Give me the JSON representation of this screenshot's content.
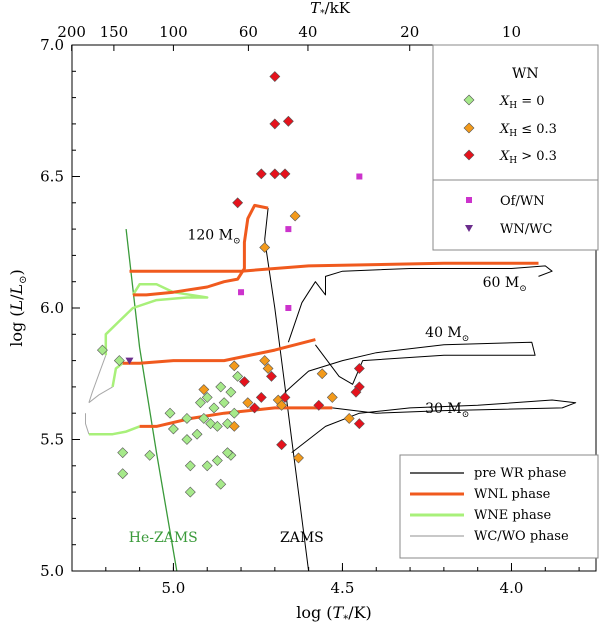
{
  "chart_data": {
    "type": "scatter",
    "title": "",
    "xlabel": "log (T*/K)",
    "ylabel": "log (L/L⊙)",
    "top_axis_label": "T*/kK",
    "xlim": [
      5.3,
      3.75
    ],
    "ylim": [
      5.0,
      7.0
    ],
    "x_ticks": [
      {
        "value": 5.0,
        "label": "5.0"
      },
      {
        "value": 4.5,
        "label": "4.5"
      },
      {
        "value": 4.0,
        "label": "4.0"
      }
    ],
    "y_ticks": [
      {
        "value": 5.0,
        "label": "5.0"
      },
      {
        "value": 5.5,
        "label": "5.5"
      },
      {
        "value": 6.0,
        "label": "6.0"
      },
      {
        "value": 6.5,
        "label": "6.5"
      },
      {
        "value": 7.0,
        "label": "7.0"
      }
    ],
    "top_ticks": [
      {
        "kK": 200,
        "label": "200"
      },
      {
        "kK": 150,
        "label": "150"
      },
      {
        "kK": 100,
        "label": "100"
      },
      {
        "kK": 60,
        "label": "60"
      },
      {
        "kK": 40,
        "label": "40"
      },
      {
        "kK": 20,
        "label": "20"
      },
      {
        "kK": 10,
        "label": "10"
      }
    ],
    "legend_top": {
      "title": "WN",
      "entries": [
        {
          "label": "XH = 0",
          "symbol": "diamond",
          "color": "#a6e98a"
        },
        {
          "label": "XH ≤ 0.3",
          "symbol": "diamond",
          "color": "#f39a1b"
        },
        {
          "label": "XH > 0.3",
          "symbol": "diamond",
          "color": "#e5121c"
        },
        {
          "label": "Of/WN",
          "symbol": "square",
          "color": "#cc33cc"
        },
        {
          "label": "WN/WC",
          "symbol": "triangle",
          "color": "#6b2d8c"
        }
      ]
    },
    "legend_bottom": {
      "entries": [
        {
          "label": "pre WR phase",
          "color": "#000000"
        },
        {
          "label": "WNL phase",
          "color": "#f05a1e"
        },
        {
          "label": "WNE phase",
          "color": "#a8f07a"
        },
        {
          "label": "WC/WO phase",
          "color": "#a8a8a8"
        }
      ]
    },
    "annotations": [
      {
        "text": "120 M⊙",
        "x": 4.88,
        "y": 6.26
      },
      {
        "text": "60 M⊙",
        "x": 4.02,
        "y": 6.08
      },
      {
        "text": "40 M⊙",
        "x": 4.19,
        "y": 5.89
      },
      {
        "text": "30 M⊙",
        "x": 4.19,
        "y": 5.6
      },
      {
        "text": "He-ZAMS",
        "x": 5.03,
        "y": 5.11
      },
      {
        "text": "ZAMS",
        "x": 4.62,
        "y": 5.11
      }
    ],
    "series": [
      {
        "name": "XH = 0",
        "symbol": "diamond",
        "color": "#a6e98a",
        "points": [
          [
            5.21,
            5.84
          ],
          [
            5.16,
            5.8
          ],
          [
            5.15,
            5.45
          ],
          [
            5.15,
            5.37
          ],
          [
            5.07,
            5.44
          ],
          [
            5.01,
            5.6
          ],
          [
            5.0,
            5.54
          ],
          [
            4.96,
            5.58
          ],
          [
            4.96,
            5.5
          ],
          [
            4.95,
            5.4
          ],
          [
            4.95,
            5.3
          ],
          [
            4.93,
            5.52
          ],
          [
            4.92,
            5.64
          ],
          [
            4.91,
            5.58
          ],
          [
            4.9,
            5.4
          ],
          [
            4.9,
            5.66
          ],
          [
            4.89,
            5.56
          ],
          [
            4.88,
            5.62
          ],
          [
            4.87,
            5.55
          ],
          [
            4.87,
            5.42
          ],
          [
            4.86,
            5.33
          ],
          [
            4.86,
            5.7
          ],
          [
            4.85,
            5.64
          ],
          [
            4.84,
            5.56
          ],
          [
            4.83,
            5.44
          ],
          [
            4.83,
            5.68
          ],
          [
            4.82,
            5.6
          ],
          [
            4.81,
            5.74
          ],
          [
            4.84,
            5.45
          ]
        ]
      },
      {
        "name": "XH ≤ 0.3",
        "symbol": "diamond",
        "color": "#f39a1b",
        "points": [
          [
            4.91,
            5.69
          ],
          [
            4.82,
            5.78
          ],
          [
            4.82,
            5.55
          ],
          [
            4.78,
            5.64
          ],
          [
            4.73,
            6.23
          ],
          [
            4.73,
            5.8
          ],
          [
            4.72,
            5.77
          ],
          [
            4.69,
            5.65
          ],
          [
            4.68,
            5.63
          ],
          [
            4.64,
            6.35
          ],
          [
            4.63,
            5.43
          ],
          [
            4.56,
            5.75
          ],
          [
            4.53,
            5.66
          ],
          [
            4.48,
            5.58
          ]
        ]
      },
      {
        "name": "XH > 0.3",
        "symbol": "diamond",
        "color": "#e5121c",
        "points": [
          [
            4.7,
            6.88
          ],
          [
            4.7,
            6.7
          ],
          [
            4.7,
            6.51
          ],
          [
            4.74,
            6.51
          ],
          [
            4.81,
            6.4
          ],
          [
            4.66,
            6.71
          ],
          [
            4.67,
            6.51
          ],
          [
            4.79,
            5.72
          ],
          [
            4.76,
            5.62
          ],
          [
            4.74,
            5.66
          ],
          [
            4.71,
            5.74
          ],
          [
            4.67,
            5.66
          ],
          [
            4.68,
            5.48
          ],
          [
            4.57,
            5.63
          ],
          [
            4.45,
            5.77
          ],
          [
            4.45,
            5.7
          ],
          [
            4.46,
            5.68
          ],
          [
            4.45,
            5.56
          ]
        ]
      },
      {
        "name": "Of/WN",
        "symbol": "square",
        "color": "#cc33cc",
        "points": [
          [
            4.45,
            6.5
          ],
          [
            4.66,
            6.3
          ],
          [
            4.8,
            6.06
          ],
          [
            4.66,
            6.0
          ]
        ]
      },
      {
        "name": "WN/WC",
        "symbol": "triangle",
        "color": "#6b2d8c",
        "points": [
          [
            5.13,
            5.8
          ]
        ]
      }
    ],
    "tracks": [
      {
        "name": "He-ZAMS",
        "phase": "he-zams",
        "color": "#3a9a3a",
        "points": [
          [
            5.14,
            6.3
          ],
          [
            5.1,
            5.85
          ],
          [
            5.05,
            5.45
          ],
          [
            4.99,
            5.0
          ]
        ]
      },
      {
        "name": "ZAMS",
        "phase": "pre-wr",
        "color": "#000000",
        "points": [
          [
            4.73,
            6.26
          ],
          [
            4.7,
            6.0
          ],
          [
            4.67,
            5.7
          ],
          [
            4.65,
            5.5
          ],
          [
            4.6,
            5.0
          ]
        ]
      },
      {
        "name": "120 M⊙ pre WR",
        "phase": "pre-wr",
        "color": "#000000",
        "points": [
          [
            4.73,
            6.26
          ],
          [
            4.72,
            6.38
          ]
        ]
      },
      {
        "name": "120 M⊙ WNL",
        "phase": "wnl",
        "color": "#f05a1e",
        "points": [
          [
            4.72,
            6.38
          ],
          [
            4.76,
            6.39
          ],
          [
            4.78,
            6.34
          ],
          [
            4.79,
            6.25
          ],
          [
            4.79,
            6.15
          ],
          [
            4.81,
            6.11
          ],
          [
            4.85,
            6.1
          ],
          [
            4.9,
            6.08
          ],
          [
            5.0,
            6.06
          ],
          [
            5.08,
            6.05
          ],
          [
            5.12,
            6.05
          ]
        ]
      },
      {
        "name": "120 M⊙ WNE",
        "phase": "wne",
        "color": "#a8f07a",
        "points": [
          [
            5.12,
            6.05
          ],
          [
            5.1,
            6.09
          ],
          [
            5.05,
            6.09
          ],
          [
            5.0,
            6.06
          ],
          [
            4.9,
            6.04
          ],
          [
            4.96,
            6.04
          ],
          [
            5.05,
            6.03
          ],
          [
            5.12,
            6.0
          ],
          [
            5.16,
            5.95
          ],
          [
            5.2,
            5.9
          ],
          [
            5.2,
            5.82
          ]
        ]
      },
      {
        "name": "120 M⊙ WC/WO",
        "phase": "wc",
        "color": "#a8a8a8",
        "points": [
          [
            5.2,
            5.82
          ],
          [
            5.22,
            5.75
          ],
          [
            5.24,
            5.68
          ],
          [
            5.25,
            5.64
          ]
        ]
      },
      {
        "name": "60 M⊙ pre WR",
        "phase": "pre-wr",
        "color": "#000000",
        "points": [
          [
            4.66,
            5.87
          ],
          [
            4.62,
            6.02
          ],
          [
            4.6,
            6.06
          ],
          [
            4.58,
            6.1
          ],
          [
            4.55,
            6.05
          ],
          [
            4.55,
            6.12
          ],
          [
            4.5,
            6.14
          ],
          [
            4.3,
            6.15
          ],
          [
            4.0,
            6.15
          ],
          [
            3.9,
            6.16
          ],
          [
            3.88,
            6.14
          ],
          [
            3.92,
            6.12
          ]
        ]
      },
      {
        "name": "60 M⊙ WNL",
        "phase": "wnl",
        "color": "#f05a1e",
        "points": [
          [
            3.92,
            6.17
          ],
          [
            4.2,
            6.17
          ],
          [
            4.6,
            6.16
          ],
          [
            4.8,
            6.14
          ],
          [
            5.0,
            6.14
          ],
          [
            5.13,
            6.14
          ]
        ]
      },
      {
        "name": "40 M⊙ pre WR",
        "phase": "pre-wr",
        "color": "#000000",
        "points": [
          [
            4.67,
            5.68
          ],
          [
            4.6,
            5.76
          ],
          [
            4.5,
            5.8
          ],
          [
            4.4,
            5.83
          ],
          [
            4.2,
            5.86
          ],
          [
            3.94,
            5.87
          ],
          [
            3.93,
            5.82
          ],
          [
            4.2,
            5.82
          ],
          [
            4.44,
            5.8
          ],
          [
            4.47,
            5.71
          ],
          [
            4.51,
            5.74
          ],
          [
            4.58,
            5.86
          ]
        ]
      },
      {
        "name": "40 M⊙ WNL",
        "phase": "wnl",
        "color": "#f05a1e",
        "points": [
          [
            4.58,
            5.88
          ],
          [
            4.7,
            5.84
          ],
          [
            4.85,
            5.8
          ],
          [
            5.0,
            5.8
          ],
          [
            5.1,
            5.79
          ],
          [
            5.15,
            5.79
          ]
        ]
      },
      {
        "name": "40 M⊙ WNE",
        "phase": "wne",
        "color": "#a8f07a",
        "points": [
          [
            5.15,
            5.79
          ],
          [
            5.17,
            5.77
          ],
          [
            5.18,
            5.7
          ]
        ]
      },
      {
        "name": "40 M⊙ WC/WO",
        "phase": "wc",
        "color": "#a8a8a8",
        "points": [
          [
            5.18,
            5.7
          ],
          [
            5.22,
            5.67
          ],
          [
            5.25,
            5.64
          ]
        ]
      },
      {
        "name": "30 M⊙ pre WR",
        "phase": "pre-wr",
        "color": "#000000",
        "points": [
          [
            4.65,
            5.45
          ],
          [
            4.55,
            5.55
          ],
          [
            4.45,
            5.6
          ],
          [
            4.3,
            5.62
          ],
          [
            4.1,
            5.63
          ],
          [
            3.88,
            5.65
          ],
          [
            3.81,
            5.64
          ],
          [
            3.85,
            5.62
          ],
          [
            4.2,
            5.61
          ],
          [
            4.4,
            5.6
          ],
          [
            4.53,
            5.62
          ]
        ]
      },
      {
        "name": "30 M⊙ WNL",
        "phase": "wnl",
        "color": "#f05a1e",
        "points": [
          [
            4.53,
            5.62
          ],
          [
            4.7,
            5.62
          ],
          [
            4.85,
            5.6
          ],
          [
            4.95,
            5.58
          ],
          [
            5.05,
            5.55
          ],
          [
            5.1,
            5.55
          ]
        ]
      },
      {
        "name": "30 M⊙ WNE",
        "phase": "wne",
        "color": "#a8f07a",
        "points": [
          [
            5.1,
            5.55
          ],
          [
            5.14,
            5.53
          ],
          [
            5.18,
            5.52
          ],
          [
            5.25,
            5.52
          ]
        ]
      },
      {
        "name": "30 M⊙ WC/WO",
        "phase": "wc",
        "color": "#a8a8a8",
        "points": [
          [
            5.25,
            5.52
          ],
          [
            5.26,
            5.56
          ],
          [
            5.26,
            5.6
          ]
        ]
      }
    ]
  }
}
